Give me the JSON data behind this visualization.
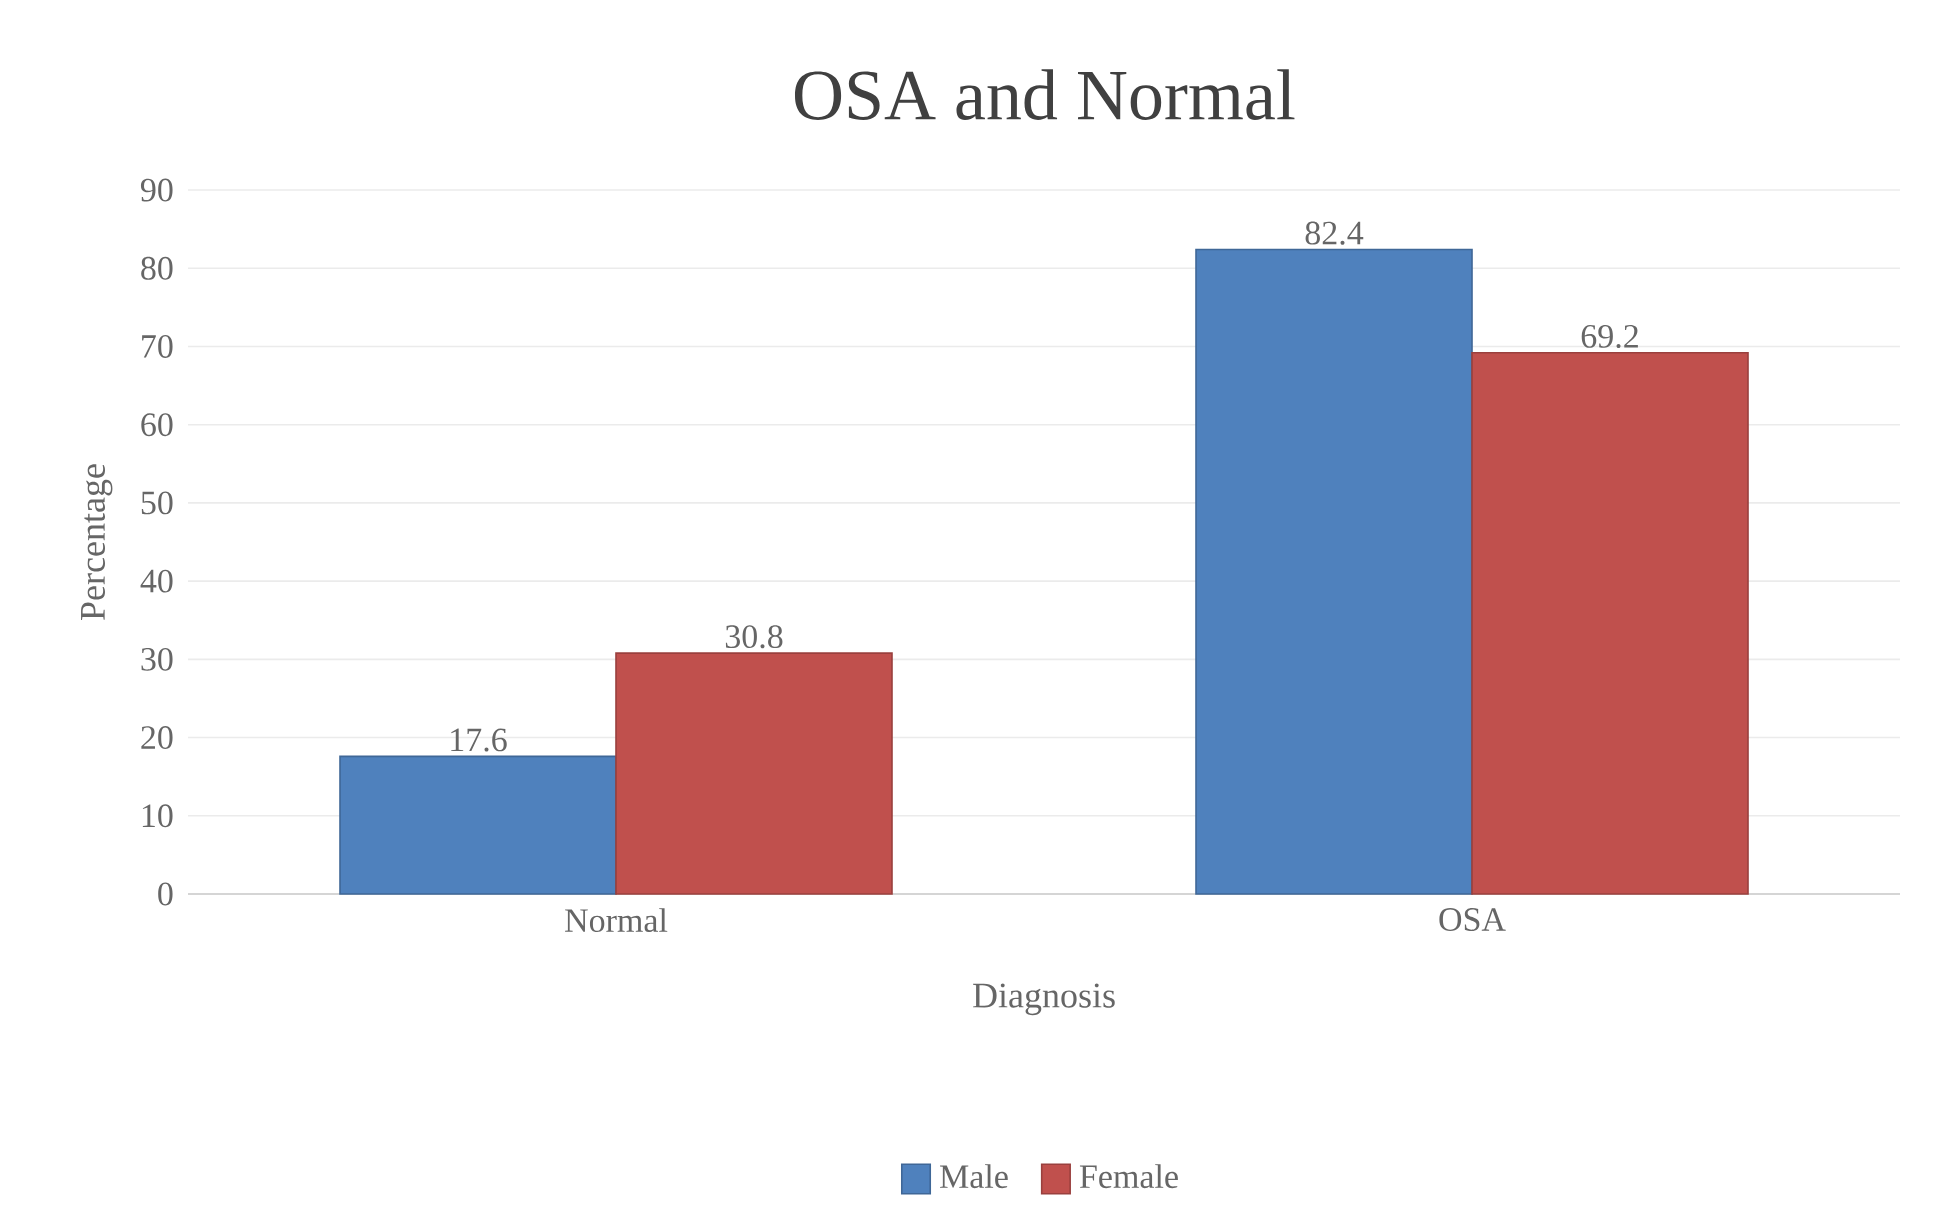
{
  "chart_data": {
    "type": "bar",
    "title": "OSA and Normal",
    "xlabel": "Diagnosis",
    "ylabel": "Percentage",
    "categories": [
      "Normal",
      "OSA"
    ],
    "series": [
      {
        "name": "Male",
        "color": "#4f81bd",
        "values": [
          17.6,
          82.4
        ]
      },
      {
        "name": "Female",
        "color": "#c0504d",
        "values": [
          30.8,
          69.2
        ]
      }
    ],
    "ylim": [
      0,
      90
    ],
    "yticks": [
      0,
      10,
      20,
      30,
      40,
      50,
      60,
      70,
      80,
      90
    ],
    "grid": "y",
    "legend": "bottom",
    "data_labels": true
  }
}
